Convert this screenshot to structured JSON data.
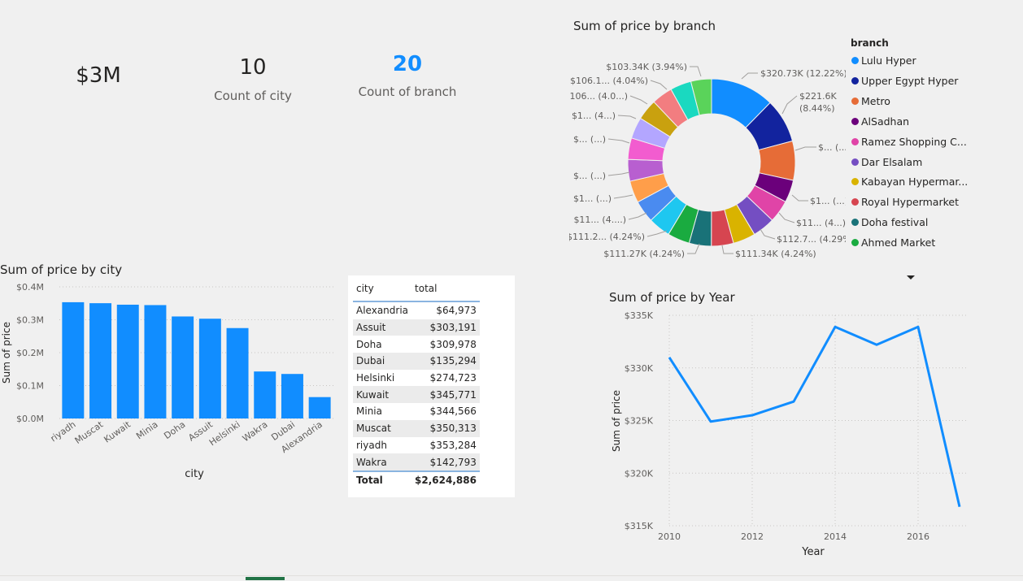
{
  "kpis": [
    {
      "value": "$3M",
      "label": ""
    },
    {
      "value": "10",
      "label": "Count of city"
    },
    {
      "value": "20",
      "label": "Count of branch"
    }
  ],
  "colors": {
    "accent": "#118dff",
    "gridline": "#c8c6c4"
  },
  "chart_data": [
    {
      "type": "pie",
      "subtype": "donut",
      "title": "Sum of price by branch",
      "legend_title": "branch",
      "legend_position": "right",
      "legend": [
        {
          "name": "Lulu Hyper",
          "color": "#118dff"
        },
        {
          "name": "Upper Egypt Hyper",
          "color": "#12239e"
        },
        {
          "name": "Metro",
          "color": "#e66c37"
        },
        {
          "name": "AlSadhan",
          "color": "#6b007b"
        },
        {
          "name": "Ramez Shopping C...",
          "color": "#e044a7"
        },
        {
          "name": "Dar Elsalam",
          "color": "#744ec2"
        },
        {
          "name": "Kabayan Hypermar...",
          "color": "#d9b300"
        },
        {
          "name": "Royal Hypermarket",
          "color": "#d64550"
        },
        {
          "name": "Doha festival",
          "color": "#197278"
        },
        {
          "name": "Ahmed Market",
          "color": "#1aab40"
        }
      ],
      "slices": [
        {
          "value": 12.22,
          "color": "#118dff"
        },
        {
          "value": 8.44,
          "color": "#12239e"
        },
        {
          "value": 7.5,
          "color": "#e66c37"
        },
        {
          "value": 4.3,
          "color": "#6b007b"
        },
        {
          "value": 4.3,
          "color": "#e044a7"
        },
        {
          "value": 4.29,
          "color": "#744ec2"
        },
        {
          "value": 4.29,
          "color": "#d9b300"
        },
        {
          "value": 4.24,
          "color": "#d64550"
        },
        {
          "value": 4.24,
          "color": "#197278"
        },
        {
          "value": 4.24,
          "color": "#1aab40"
        },
        {
          "value": 4.24,
          "color": "#1ec7f0"
        },
        {
          "value": 4.24,
          "color": "#4a8bf0"
        },
        {
          "value": 4.2,
          "color": "#ff9e4a"
        },
        {
          "value": 4.15,
          "color": "#b85fd0"
        },
        {
          "value": 4.1,
          "color": "#f25ccf"
        },
        {
          "value": 4.1,
          "color": "#b3a6ff"
        },
        {
          "value": 4.0,
          "color": "#c9a10f"
        },
        {
          "value": 4.0,
          "color": "#f27d80"
        },
        {
          "value": 4.04,
          "color": "#1ad9c0"
        },
        {
          "value": 3.94,
          "color": "#5ad35a"
        }
      ],
      "labels": [
        {
          "text": "$320.73K (12.22%)",
          "anchor": "start"
        },
        {
          "text": "$221.6K",
          "anchor": "start"
        },
        {
          "text": "(8.44%)",
          "anchor": "start"
        },
        {
          "text": "$... (...)",
          "anchor": "start"
        },
        {
          "text": "$1... (...)",
          "anchor": "start"
        },
        {
          "text": "$11... (4...)",
          "anchor": "start"
        },
        {
          "text": "$112.7... (4.29%)",
          "anchor": "start"
        },
        {
          "text": "$111.34K (4.24%)",
          "anchor": "start"
        },
        {
          "text": "$111.27K (4.24%)",
          "anchor": "end"
        },
        {
          "text": "$111.2... (4.24%)",
          "anchor": "end"
        },
        {
          "text": "$11... (4....)",
          "anchor": "end"
        },
        {
          "text": "$1... (...)",
          "anchor": "end"
        },
        {
          "text": "$... (...)",
          "anchor": "end"
        },
        {
          "text": "$... (...)",
          "anchor": "end"
        },
        {
          "text": "$1... (4...)",
          "anchor": "end"
        },
        {
          "text": "$106... (4.0...)",
          "anchor": "end"
        },
        {
          "text": "$106.1... (4.04%)",
          "anchor": "end"
        },
        {
          "text": "$103.34K (3.94%)",
          "anchor": "end"
        }
      ]
    },
    {
      "type": "bar",
      "title": "Sum of price by city",
      "xlabel": "city",
      "ylabel": "Sum of price",
      "ylim": [
        0,
        400000
      ],
      "yticks": [
        {
          "v": 0,
          "t": "$0.0M"
        },
        {
          "v": 100000,
          "t": "$0.1M"
        },
        {
          "v": 200000,
          "t": "$0.2M"
        },
        {
          "v": 300000,
          "t": "$0.3M"
        },
        {
          "v": 400000,
          "t": "$0.4M"
        }
      ],
      "categories": [
        "riyadh",
        "Muscat",
        "Kuwait",
        "Minia",
        "Doha",
        "Assuit",
        "Helsinki",
        "Wakra",
        "Dubai",
        "Alexandria"
      ],
      "values": [
        353284,
        350313,
        345771,
        344566,
        309978,
        303191,
        274723,
        142793,
        135294,
        64973
      ],
      "color": "#118dff"
    },
    {
      "type": "table",
      "columns": [
        "city",
        "total"
      ],
      "rows": [
        [
          "Alexandria",
          "$64,973"
        ],
        [
          "Assuit",
          "$303,191"
        ],
        [
          "Doha",
          "$309,978"
        ],
        [
          "Dubai",
          "$135,294"
        ],
        [
          "Helsinki",
          "$274,723"
        ],
        [
          "Kuwait",
          "$345,771"
        ],
        [
          "Minia",
          "$344,566"
        ],
        [
          "Muscat",
          "$350,313"
        ],
        [
          "riyadh",
          "$353,284"
        ],
        [
          "Wakra",
          "$142,793"
        ]
      ],
      "total": [
        "Total",
        "$2,624,886"
      ]
    },
    {
      "type": "line",
      "title": "Sum of price by Year",
      "xlabel": "Year",
      "ylabel": "Sum of price",
      "xlim": [
        2010,
        2017
      ],
      "ylim": [
        315000,
        335000
      ],
      "xticks": [
        2010,
        2012,
        2014,
        2016
      ],
      "yticks": [
        {
          "v": 315000,
          "t": "$315K"
        },
        {
          "v": 320000,
          "t": "$320K"
        },
        {
          "v": 325000,
          "t": "$325K"
        },
        {
          "v": 330000,
          "t": "$330K"
        },
        {
          "v": 335000,
          "t": "$335K"
        }
      ],
      "x": [
        2010,
        2011,
        2012,
        2013,
        2014,
        2015,
        2016,
        2017
      ],
      "y": [
        331000,
        324900,
        325500,
        326800,
        333900,
        332200,
        333900,
        316800
      ],
      "color": "#118dff"
    }
  ]
}
